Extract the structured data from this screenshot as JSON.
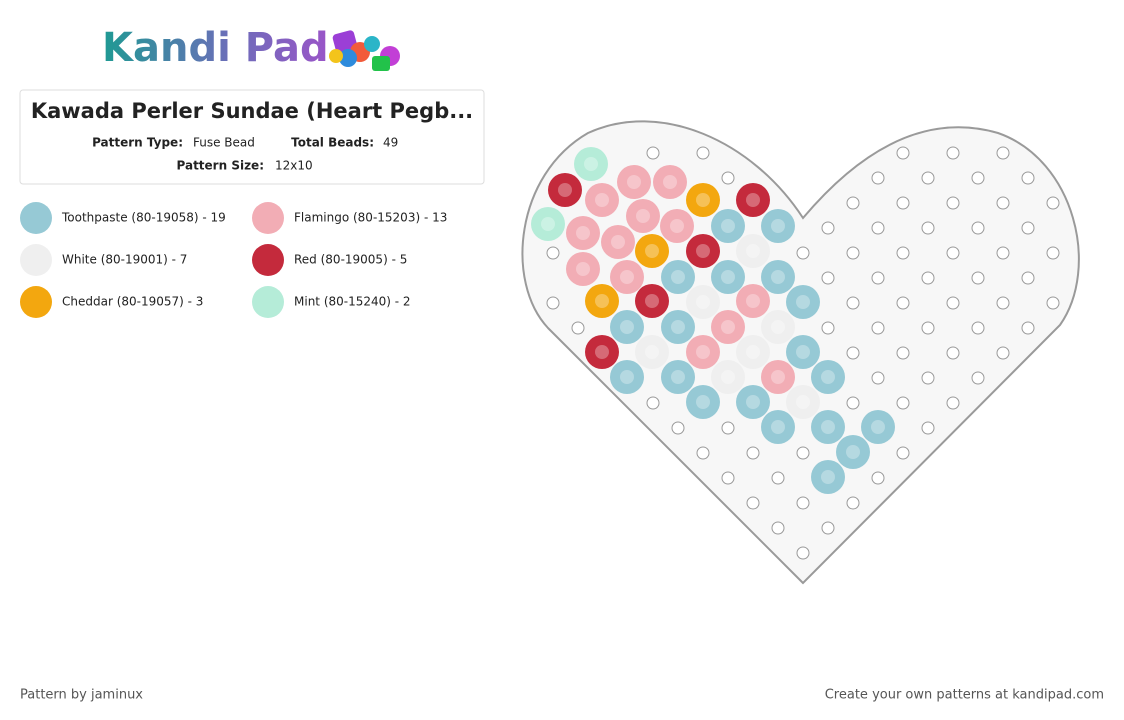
{
  "header": {
    "logo": "Kandi Pad"
  },
  "pattern": {
    "title": "Kawada Perler Sundae (Heart Pegb...",
    "type_label": "Pattern Type:",
    "type": "Fuse Bead",
    "beads_label": "Total Beads:",
    "beads": 49,
    "size_label": "Pattern Size:",
    "size": "12x10"
  },
  "legend": [
    {
      "label": "Toothpaste (80-19058) - 19",
      "color": "#96c9d5"
    },
    {
      "label": "Flamingo (80-15203) - 13",
      "color": "#f2adb5"
    },
    {
      "label": "White (80-19001) - 7",
      "color": "#efefef"
    },
    {
      "label": "Red (80-19005) - 5",
      "color": "#c42a3c"
    },
    {
      "label": "Cheddar (80-19057) - 3",
      "color": "#f3a70f"
    },
    {
      "label": "Mint (80-15240) - 2",
      "color": "#b5ecd8"
    }
  ],
  "footer": {
    "author": "Pattern by jaminux",
    "cta": "Create your own patterns at kandipad.com"
  }
}
